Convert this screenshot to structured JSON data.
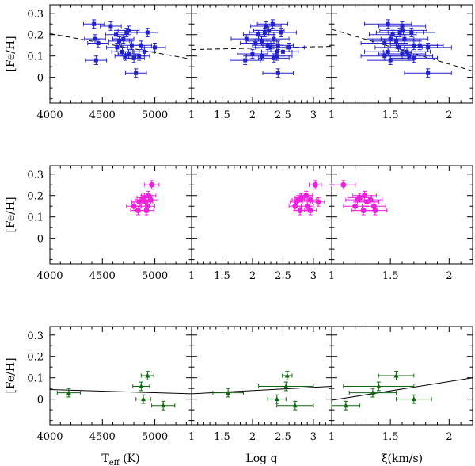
{
  "chart_data": {
    "type": "scatter",
    "layout": "3 rows x 3 columns of panels sharing [Fe/H] axis per row",
    "ylabel": "[Fe/H]",
    "ylim": [
      -0.12,
      0.34
    ],
    "yticks": [
      "0",
      "0.1",
      "0.2",
      "0.3"
    ],
    "columns": [
      {
        "key": "teff",
        "xlabel_main": "T",
        "xlabel_sub": "eff",
        "xlabel_tail": " (K)",
        "xlim": [
          4000,
          5350
        ],
        "xticks": [
          "4000",
          "4500",
          "5000"
        ]
      },
      {
        "key": "logg",
        "xlabel_main": "Log g",
        "xlim": [
          1,
          3.3
        ],
        "xticks": [
          "1",
          "1.5",
          "2",
          "2.5",
          "3"
        ]
      },
      {
        "key": "xi",
        "xlabel_main": "ξ(km/s)",
        "xlim": [
          1,
          2.2
        ],
        "xticks": [
          "1",
          "1.5",
          "2"
        ]
      }
    ],
    "rows": [
      {
        "name": "blue sample",
        "color": "#2222cc",
        "marker": "square",
        "xerr": {
          "teff": 100,
          "logg": 0.25,
          "xi": 0.2
        },
        "yerr": 0.02,
        "points": [
          {
            "teff": 4420,
            "logg": 2.33,
            "xi": 1.48,
            "feh": 0.25
          },
          {
            "teff": 4580,
            "logg": 2.22,
            "xi": 1.6,
            "feh": 0.24
          },
          {
            "teff": 4750,
            "logg": 2.27,
            "xi": 1.61,
            "feh": 0.22
          },
          {
            "teff": 4730,
            "logg": 2.2,
            "xi": 1.58,
            "feh": 0.21
          },
          {
            "teff": 4930,
            "logg": 2.47,
            "xi": 1.68,
            "feh": 0.21
          },
          {
            "teff": 4630,
            "logg": 2.1,
            "xi": 1.52,
            "feh": 0.2
          },
          {
            "teff": 4430,
            "logg": 1.9,
            "xi": 1.5,
            "feh": 0.18
          },
          {
            "teff": 4700,
            "logg": 2.35,
            "xi": 1.62,
            "feh": 0.18
          },
          {
            "teff": 4460,
            "logg": 2.05,
            "xi": 1.45,
            "feh": 0.16
          },
          {
            "teff": 4660,
            "logg": 2.15,
            "xi": 1.55,
            "feh": 0.17
          },
          {
            "teff": 4870,
            "logg": 2.42,
            "xi": 1.75,
            "feh": 0.15
          },
          {
            "teff": 4640,
            "logg": 2.3,
            "xi": 1.57,
            "feh": 0.14
          },
          {
            "teff": 4780,
            "logg": 2.25,
            "xi": 1.7,
            "feh": 0.15
          },
          {
            "teff": 5000,
            "logg": 2.6,
            "xi": 1.82,
            "feh": 0.14
          },
          {
            "teff": 4690,
            "logg": 2.4,
            "xi": 1.48,
            "feh": 0.12
          },
          {
            "teff": 4900,
            "logg": 2.5,
            "xi": 1.64,
            "feh": 0.12
          },
          {
            "teff": 4750,
            "logg": 2.0,
            "xi": 1.6,
            "feh": 0.11
          },
          {
            "teff": 4850,
            "logg": 2.15,
            "xi": 1.45,
            "feh": 0.1
          },
          {
            "teff": 4720,
            "logg": 2.4,
            "xi": 1.66,
            "feh": 0.1
          },
          {
            "teff": 4800,
            "logg": 2.35,
            "xi": 1.7,
            "feh": 0.09
          },
          {
            "teff": 4440,
            "logg": 1.88,
            "xi": 1.5,
            "feh": 0.08
          },
          {
            "teff": 4820,
            "logg": 2.42,
            "xi": 1.82,
            "feh": 0.02
          }
        ],
        "fits": {
          "teff": {
            "style": "dashed",
            "x": [
              4000,
              5350
            ],
            "y": [
              0.205,
              0.085
            ]
          },
          "logg": {
            "style": "dashed",
            "x": [
              1,
              3.3
            ],
            "y": [
              0.13,
              0.145
            ]
          },
          "xi": {
            "style": "dashed",
            "x": [
              1,
              2.2
            ],
            "y": [
              0.225,
              0.03
            ]
          }
        }
      },
      {
        "name": "magenta sample",
        "color": "#ee22dd",
        "marker": "circle",
        "xerr": {
          "teff": 70,
          "logg": 0.1,
          "xi": 0.1
        },
        "yerr": 0.02,
        "points": [
          {
            "teff": 4970,
            "logg": 3.03,
            "xi": 1.1,
            "feh": 0.25
          },
          {
            "teff": 4940,
            "logg": 2.88,
            "xi": 1.28,
            "feh": 0.2
          },
          {
            "teff": 4900,
            "logg": 2.8,
            "xi": 1.24,
            "feh": 0.19
          },
          {
            "teff": 4880,
            "logg": 2.75,
            "xi": 1.22,
            "feh": 0.18
          },
          {
            "teff": 4960,
            "logg": 2.95,
            "xi": 1.33,
            "feh": 0.18
          },
          {
            "teff": 4910,
            "logg": 3.08,
            "xi": 1.3,
            "feh": 0.17
          },
          {
            "teff": 4850,
            "logg": 2.72,
            "xi": 1.3,
            "feh": 0.17
          },
          {
            "teff": 4800,
            "logg": 2.7,
            "xi": 1.2,
            "feh": 0.15
          },
          {
            "teff": 4930,
            "logg": 2.9,
            "xi": 1.36,
            "feh": 0.15
          },
          {
            "teff": 4840,
            "logg": 2.78,
            "xi": 1.27,
            "feh": 0.13
          },
          {
            "teff": 4920,
            "logg": 2.95,
            "xi": 1.37,
            "feh": 0.13
          }
        ],
        "fits": {}
      },
      {
        "name": "green sample",
        "color": "#116611",
        "marker": "triangle",
        "yerr": 0.02,
        "points": [
          {
            "teff": 4180,
            "logg": 1.6,
            "xi": 1.35,
            "feh": 0.03,
            "xerr": {
              "teff": 110,
              "logg": 0.25,
              "xi": 0.2
            }
          },
          {
            "teff": 4890,
            "logg": 2.4,
            "xi": 1.7,
            "feh": 0.0,
            "xerr": {
              "teff": 70,
              "logg": 0.15,
              "xi": 0.15
            }
          },
          {
            "teff": 4870,
            "logg": 2.55,
            "xi": 1.4,
            "feh": 0.06,
            "xerr": {
              "teff": 80,
              "logg": 0.45,
              "xi": 0.3
            }
          },
          {
            "teff": 4930,
            "logg": 2.57,
            "xi": 1.55,
            "feh": 0.11,
            "xerr": {
              "teff": 60,
              "logg": 0.08,
              "xi": 0.15
            }
          },
          {
            "teff": 5080,
            "logg": 2.7,
            "xi": 1.12,
            "feh": -0.03,
            "xerr": {
              "teff": 110,
              "logg": 0.3,
              "xi": 0.12
            }
          }
        ],
        "fits": {
          "teff": {
            "style": "solid",
            "x": [
              4000,
              5350
            ],
            "y": [
              0.045,
              0.025
            ]
          },
          "logg": {
            "style": "solid",
            "x": [
              1,
              3.3
            ],
            "y": [
              0.025,
              0.06
            ]
          },
          "xi": {
            "style": "solid",
            "x": [
              1,
              2.2
            ],
            "y": [
              -0.005,
              0.1
            ]
          }
        }
      }
    ]
  }
}
